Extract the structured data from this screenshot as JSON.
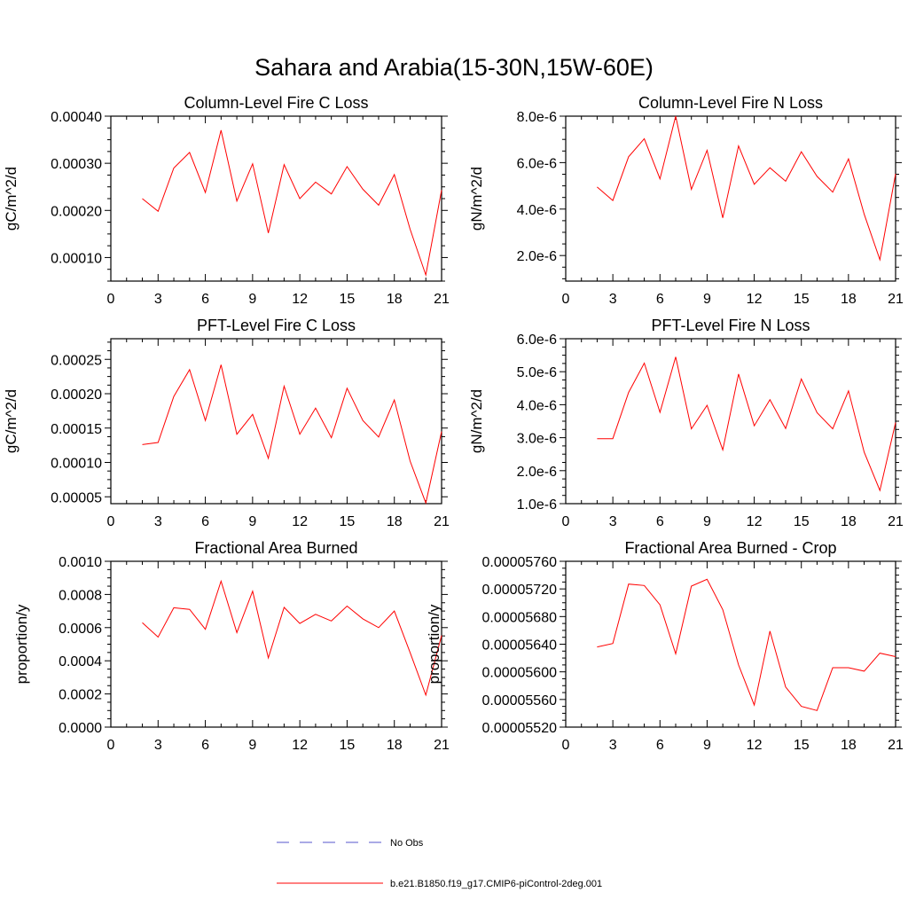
{
  "title": "Sahara and Arabia(15-30N,15W-60E)",
  "colors": {
    "model": "#ff0000",
    "obs": "#5555cc",
    "axis": "#000000"
  },
  "legend": [
    {
      "label": "No Obs",
      "style": "dashed",
      "color": "#5555cc"
    },
    {
      "label": "b.e21.B1850.f19_g17.CMIP6-piControl-2deg.001",
      "style": "solid",
      "color": "#ff0000"
    }
  ],
  "chart_data": [
    {
      "type": "line",
      "title": "Column-Level Fire C Loss",
      "ylabel": "gC/m^2/d",
      "xlabel": "",
      "xlim": [
        0,
        21
      ],
      "ylim": [
        5e-05,
        0.0004
      ],
      "xticks": [
        "0",
        "3",
        "6",
        "9",
        "12",
        "15",
        "18",
        "21"
      ],
      "yticks": [
        {
          "v": 0.0001,
          "label": "0.00010"
        },
        {
          "v": 0.0002,
          "label": "0.00020"
        },
        {
          "v": 0.0003,
          "label": "0.00030"
        },
        {
          "v": 0.0004,
          "label": "0.00040"
        }
      ],
      "series": [
        {
          "name": "b.e21.B1850.f19_g17.CMIP6-piControl-2deg.001",
          "x": [
            2,
            3,
            4,
            5,
            6,
            7,
            8,
            9,
            10,
            11,
            12,
            13,
            14,
            15,
            16,
            17,
            18,
            19,
            20,
            21
          ],
          "values": [
            0.000225,
            0.000198,
            0.00029,
            0.000323,
            0.000238,
            0.00037,
            0.00022,
            0.000299,
            0.000152,
            0.000297,
            0.000225,
            0.00026,
            0.000235,
            0.000293,
            0.000245,
            0.000211,
            0.000276,
            0.00016,
            6.3e-05,
            0.000243
          ]
        }
      ]
    },
    {
      "type": "line",
      "title": "Column-Level Fire N Loss",
      "ylabel": "gN/m^2/d",
      "xlabel": "",
      "xlim": [
        0,
        21
      ],
      "ylim": [
        9e-07,
        8e-06
      ],
      "xticks": [
        "0",
        "3",
        "6",
        "9",
        "12",
        "15",
        "18",
        "21"
      ],
      "yticks": [
        {
          "v": 2e-06,
          "label": "2.0e-6"
        },
        {
          "v": 4e-06,
          "label": "4.0e-6"
        },
        {
          "v": 6e-06,
          "label": "6.0e-6"
        },
        {
          "v": 8e-06,
          "label": "8.0e-6"
        }
      ],
      "series": [
        {
          "name": "b.e21.B1850.f19_g17.CMIP6-piControl-2deg.001",
          "x": [
            2,
            3,
            4,
            5,
            6,
            7,
            8,
            9,
            10,
            11,
            12,
            13,
            14,
            15,
            16,
            17,
            18,
            19,
            20,
            21
          ],
          "values": [
            4.95e-06,
            4.37e-06,
            6.25e-06,
            7.03e-06,
            5.3e-06,
            8e-06,
            4.85e-06,
            6.53e-06,
            3.62e-06,
            6.72e-06,
            5.07e-06,
            5.78e-06,
            5.2e-06,
            6.47e-06,
            5.41e-06,
            4.73e-06,
            6.16e-06,
            3.78e-06,
            1.82e-06,
            5.52e-06
          ]
        }
      ]
    },
    {
      "type": "line",
      "title": "PFT-Level Fire C Loss",
      "ylabel": "gC/m^2/d",
      "xlabel": "",
      "xlim": [
        0,
        21
      ],
      "ylim": [
        4e-05,
        0.00028
      ],
      "xticks": [
        "0",
        "3",
        "6",
        "9",
        "12",
        "15",
        "18",
        "21"
      ],
      "yticks": [
        {
          "v": 5e-05,
          "label": "0.00005"
        },
        {
          "v": 0.0001,
          "label": "0.00010"
        },
        {
          "v": 0.00015,
          "label": "0.00015"
        },
        {
          "v": 0.0002,
          "label": "0.00020"
        },
        {
          "v": 0.00025,
          "label": "0.00025"
        }
      ],
      "series": [
        {
          "name": "b.e21.B1850.f19_g17.CMIP6-piControl-2deg.001",
          "x": [
            2,
            3,
            4,
            5,
            6,
            7,
            8,
            9,
            10,
            11,
            12,
            13,
            14,
            15,
            16,
            17,
            18,
            19,
            20,
            21
          ],
          "values": [
            0.000126,
            0.000129,
            0.000196,
            0.000235,
            0.000161,
            0.000242,
            0.000141,
            0.00017,
            0.000106,
            0.000211,
            0.000141,
            0.000179,
            0.000136,
            0.000208,
            0.000161,
            0.000137,
            0.000191,
            0.000102,
            4.1e-05,
            0.000145
          ]
        }
      ]
    },
    {
      "type": "line",
      "title": "PFT-Level Fire N Loss",
      "ylabel": "gN/m^2/d",
      "xlabel": "",
      "xlim": [
        0,
        21
      ],
      "ylim": [
        1e-06,
        6e-06
      ],
      "xticks": [
        "0",
        "3",
        "6",
        "9",
        "12",
        "15",
        "18",
        "21"
      ],
      "yticks": [
        {
          "v": 1e-06,
          "label": "1.0e-6"
        },
        {
          "v": 2e-06,
          "label": "2.0e-6"
        },
        {
          "v": 3e-06,
          "label": "3.0e-6"
        },
        {
          "v": 4e-06,
          "label": "4.0e-6"
        },
        {
          "v": 5e-06,
          "label": "5.0e-6"
        },
        {
          "v": 6e-06,
          "label": "6.0e-6"
        }
      ],
      "series": [
        {
          "name": "b.e21.B1850.f19_g17.CMIP6-piControl-2deg.001",
          "x": [
            2,
            3,
            4,
            5,
            6,
            7,
            8,
            9,
            10,
            11,
            12,
            13,
            14,
            15,
            16,
            17,
            18,
            19,
            20,
            21
          ],
          "values": [
            2.97e-06,
            2.97e-06,
            4.37e-06,
            5.26e-06,
            3.77e-06,
            5.45e-06,
            3.27e-06,
            3.98e-06,
            2.63e-06,
            4.93e-06,
            3.36e-06,
            4.15e-06,
            3.28e-06,
            4.78e-06,
            3.76e-06,
            3.27e-06,
            4.42e-06,
            2.56e-06,
            1.4e-06,
            3.46e-06
          ]
        }
      ]
    },
    {
      "type": "line",
      "title": "Fractional Area Burned",
      "ylabel": "proportion/y",
      "xlabel": "",
      "xlim": [
        0,
        21
      ],
      "ylim": [
        0.0,
        0.001
      ],
      "xticks": [
        "0",
        "3",
        "6",
        "9",
        "12",
        "15",
        "18",
        "21"
      ],
      "yticks": [
        {
          "v": 0.0,
          "label": "0.0000"
        },
        {
          "v": 0.0002,
          "label": "0.0002"
        },
        {
          "v": 0.0004,
          "label": "0.0004"
        },
        {
          "v": 0.0006,
          "label": "0.0006"
        },
        {
          "v": 0.0008,
          "label": "0.0008"
        },
        {
          "v": 0.001,
          "label": "0.0010"
        }
      ],
      "series": [
        {
          "name": "b.e21.B1850.f19_g17.CMIP6-piControl-2deg.001",
          "x": [
            2,
            3,
            4,
            5,
            6,
            7,
            8,
            9,
            10,
            11,
            12,
            13,
            14,
            15,
            16,
            17,
            18,
            19,
            20,
            21
          ],
          "values": [
            0.00063,
            0.000543,
            0.00072,
            0.00071,
            0.00059,
            0.00088,
            0.00057,
            0.00082,
            0.000417,
            0.000722,
            0.000625,
            0.00068,
            0.00064,
            0.00073,
            0.000653,
            0.0006,
            0.0007,
            0.00045,
            0.000193,
            0.000553
          ]
        }
      ]
    },
    {
      "type": "line",
      "title": "Fractional Area Burned - Crop",
      "ylabel": "proportion/y",
      "xlabel": "",
      "xlim": [
        0,
        21
      ],
      "ylim": [
        5.52e-05,
        5.76e-05
      ],
      "xticks": [
        "0",
        "3",
        "6",
        "9",
        "12",
        "15",
        "18",
        "21"
      ],
      "yticks": [
        {
          "v": 5.52e-05,
          "label": "0.00005520"
        },
        {
          "v": 5.56e-05,
          "label": "0.00005560"
        },
        {
          "v": 5.6e-05,
          "label": "0.00005600"
        },
        {
          "v": 5.64e-05,
          "label": "0.00005640"
        },
        {
          "v": 5.68e-05,
          "label": "0.00005680"
        },
        {
          "v": 5.72e-05,
          "label": "0.00005720"
        },
        {
          "v": 5.76e-05,
          "label": "0.00005760"
        }
      ],
      "series": [
        {
          "name": "b.e21.B1850.f19_g17.CMIP6-piControl-2deg.001",
          "x": [
            2,
            3,
            4,
            5,
            6,
            7,
            8,
            9,
            10,
            11,
            12,
            13,
            14,
            15,
            16,
            17,
            18,
            19,
            20,
            21
          ],
          "values": [
            5.636e-05,
            5.641e-05,
            5.727e-05,
            5.725e-05,
            5.697e-05,
            5.626e-05,
            5.724e-05,
            5.734e-05,
            5.69e-05,
            5.61e-05,
            5.552e-05,
            5.659e-05,
            5.578e-05,
            5.55e-05,
            5.544e-05,
            5.606e-05,
            5.606e-05,
            5.601e-05,
            5.627e-05,
            5.622e-05
          ]
        }
      ]
    }
  ]
}
